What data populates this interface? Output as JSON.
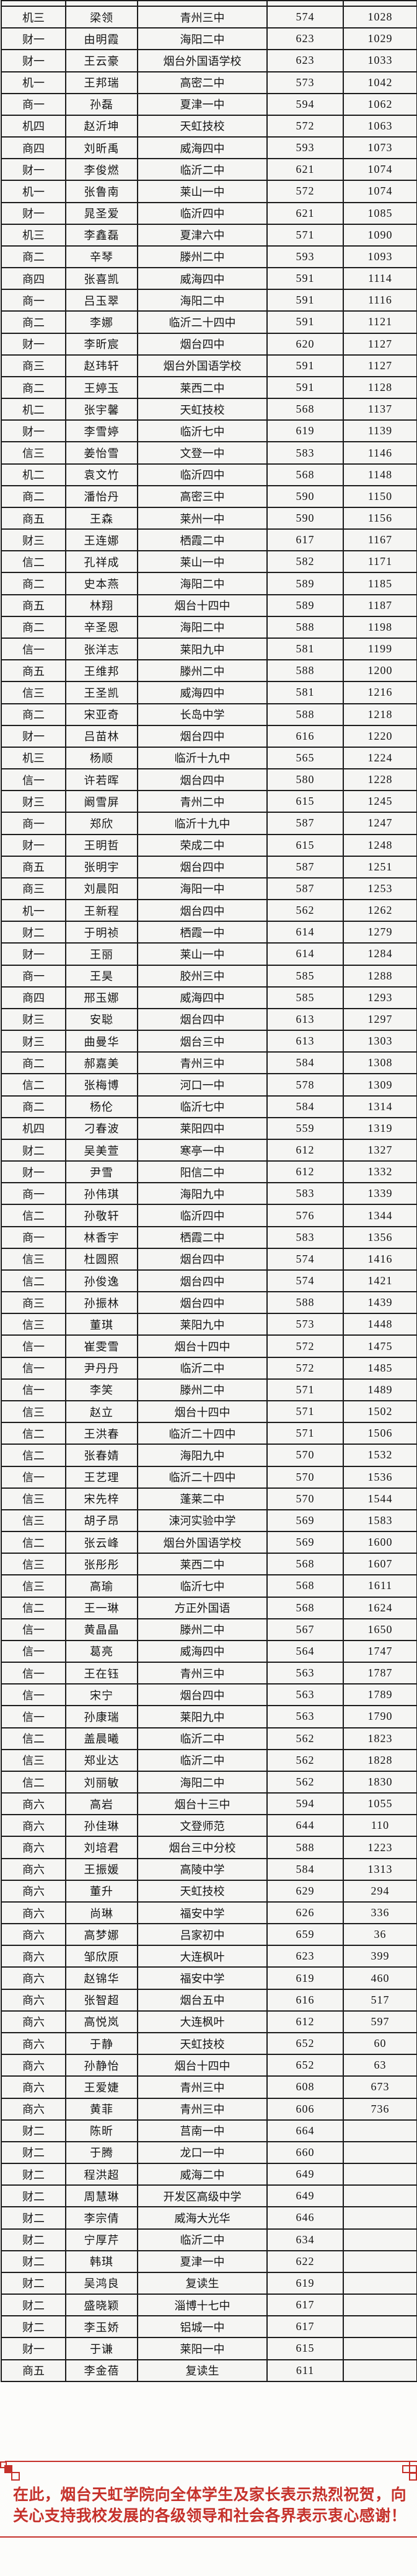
{
  "colors": {
    "accent_red": "#c5312b",
    "table_border": "#1d1d1d",
    "cell_bg": "#f5f5f3"
  },
  "table": {
    "columns": [
      "class",
      "name",
      "school",
      "score",
      "rank"
    ],
    "rows": [
      [
        "机三",
        "梁领",
        "青州三中",
        "574",
        "1028"
      ],
      [
        "财一",
        "由明霞",
        "海阳二中",
        "623",
        "1029"
      ],
      [
        "财一",
        "王云豪",
        "烟台外国语学校",
        "623",
        "1033"
      ],
      [
        "机一",
        "王邦瑞",
        "高密二中",
        "573",
        "1042"
      ],
      [
        "商一",
        "孙磊",
        "夏津一中",
        "594",
        "1062"
      ],
      [
        "机四",
        "赵沂坤",
        "天虹技校",
        "572",
        "1063"
      ],
      [
        "商四",
        "刘昕禹",
        "威海四中",
        "593",
        "1073"
      ],
      [
        "财一",
        "李俊燃",
        "临沂二中",
        "621",
        "1074"
      ],
      [
        "机一",
        "张鲁南",
        "莱山一中",
        "572",
        "1074"
      ],
      [
        "财一",
        "晁圣爱",
        "临沂四中",
        "621",
        "1085"
      ],
      [
        "机三",
        "李鑫磊",
        "夏津六中",
        "571",
        "1090"
      ],
      [
        "商二",
        "辛琴",
        "滕州二中",
        "593",
        "1093"
      ],
      [
        "商四",
        "张喜凯",
        "威海四中",
        "591",
        "1114"
      ],
      [
        "商一",
        "吕玉翠",
        "海阳二中",
        "591",
        "1116"
      ],
      [
        "商二",
        "李娜",
        "临沂二十四中",
        "591",
        "1121"
      ],
      [
        "财一",
        "李昕宸",
        "烟台四中",
        "620",
        "1127"
      ],
      [
        "商三",
        "赵玮轩",
        "烟台外国语学校",
        "591",
        "1127"
      ],
      [
        "商二",
        "王婷玉",
        "莱西二中",
        "591",
        "1128"
      ],
      [
        "机二",
        "张宇馨",
        "天虹技校",
        "568",
        "1137"
      ],
      [
        "财一",
        "李雪婷",
        "临沂七中",
        "619",
        "1139"
      ],
      [
        "信三",
        "姜怡雪",
        "文登一中",
        "583",
        "1146"
      ],
      [
        "机二",
        "袁文竹",
        "临沂四中",
        "568",
        "1148"
      ],
      [
        "商二",
        "潘怡丹",
        "高密三中",
        "590",
        "1150"
      ],
      [
        "商五",
        "王森",
        "莱州一中",
        "590",
        "1156"
      ],
      [
        "财三",
        "王连娜",
        "栖霞二中",
        "617",
        "1167"
      ],
      [
        "信二",
        "孔祥成",
        "莱山一中",
        "582",
        "1171"
      ],
      [
        "商二",
        "史本燕",
        "海阳二中",
        "589",
        "1185"
      ],
      [
        "商五",
        "林翔",
        "烟台十四中",
        "589",
        "1187"
      ],
      [
        "商二",
        "辛圣恩",
        "海阳二中",
        "588",
        "1198"
      ],
      [
        "信一",
        "张洋志",
        "莱阳九中",
        "581",
        "1199"
      ],
      [
        "商五",
        "王维邦",
        "滕州二中",
        "588",
        "1200"
      ],
      [
        "信三",
        "王圣凯",
        "威海四中",
        "581",
        "1216"
      ],
      [
        "商二",
        "宋亚奇",
        "长岛中学",
        "588",
        "1218"
      ],
      [
        "财一",
        "吕苗林",
        "烟台四中",
        "616",
        "1220"
      ],
      [
        "机三",
        "杨顺",
        "临沂十九中",
        "565",
        "1224"
      ],
      [
        "信一",
        "许若晖",
        "烟台四中",
        "580",
        "1228"
      ],
      [
        "财三",
        "阚雪屏",
        "青州二中",
        "615",
        "1245"
      ],
      [
        "商一",
        "郑欣",
        "临沂十九中",
        "587",
        "1247"
      ],
      [
        "财一",
        "王明哲",
        "荣成二中",
        "615",
        "1248"
      ],
      [
        "商五",
        "张明宇",
        "烟台四中",
        "587",
        "1251"
      ],
      [
        "商三",
        "刘晨阳",
        "海阳一中",
        "587",
        "1253"
      ],
      [
        "机一",
        "王新程",
        "烟台四中",
        "562",
        "1262"
      ],
      [
        "财二",
        "于明祯",
        "栖霞一中",
        "614",
        "1279"
      ],
      [
        "财一",
        "王丽",
        "莱山一中",
        "614",
        "1284"
      ],
      [
        "商一",
        "王昊",
        "胶州三中",
        "585",
        "1288"
      ],
      [
        "商四",
        "邢玉娜",
        "威海四中",
        "585",
        "1293"
      ],
      [
        "财三",
        "安聪",
        "烟台四中",
        "613",
        "1297"
      ],
      [
        "财三",
        "曲曼华",
        "烟台三中",
        "613",
        "1303"
      ],
      [
        "商二",
        "郝嘉美",
        "青州三中",
        "584",
        "1308"
      ],
      [
        "信二",
        "张梅博",
        "河口一中",
        "578",
        "1309"
      ],
      [
        "商二",
        "杨伦",
        "临沂七中",
        "584",
        "1314"
      ],
      [
        "机四",
        "刁春波",
        "莱阳四中",
        "559",
        "1319"
      ],
      [
        "财二",
        "吴美萱",
        "寒亭一中",
        "612",
        "1327"
      ],
      [
        "财一",
        "尹雪",
        "阳信二中",
        "612",
        "1332"
      ],
      [
        "商一",
        "孙伟琪",
        "海阳九中",
        "583",
        "1339"
      ],
      [
        "信二",
        "孙敬轩",
        "临沂四中",
        "576",
        "1344"
      ],
      [
        "商一",
        "林香宇",
        "栖霞二中",
        "583",
        "1356"
      ],
      [
        "信三",
        "杜圆照",
        "烟台四中",
        "574",
        "1416"
      ],
      [
        "信二",
        "孙俊逸",
        "烟台四中",
        "574",
        "1421"
      ],
      [
        "商三",
        "孙振林",
        "烟台四中",
        "588",
        "1439"
      ],
      [
        "信三",
        "董琪",
        "莱阳九中",
        "573",
        "1448"
      ],
      [
        "信一",
        "崔雯雪",
        "烟台十四中",
        "572",
        "1475"
      ],
      [
        "信一",
        "尹丹丹",
        "临沂二中",
        "572",
        "1485"
      ],
      [
        "信一",
        "李笑",
        "滕州二中",
        "571",
        "1489"
      ],
      [
        "信三",
        "赵立",
        "烟台十四中",
        "571",
        "1502"
      ],
      [
        "信二",
        "王洪春",
        "临沂二十四中",
        "571",
        "1506"
      ],
      [
        "信二",
        "张春婧",
        "海阳九中",
        "570",
        "1532"
      ],
      [
        "信一",
        "王艺理",
        "临沂二十四中",
        "570",
        "1536"
      ],
      [
        "信三",
        "宋先梓",
        "蓬莱二中",
        "570",
        "1544"
      ],
      [
        "信三",
        "胡子昂",
        "涑河实验中学",
        "569",
        "1583"
      ],
      [
        "信二",
        "张云峰",
        "烟台外国语学校",
        "569",
        "1600"
      ],
      [
        "信三",
        "张彤彤",
        "莱西二中",
        "568",
        "1607"
      ],
      [
        "信三",
        "高瑜",
        "临沂七中",
        "568",
        "1611"
      ],
      [
        "信二",
        "王一琳",
        "方正外国语",
        "568",
        "1624"
      ],
      [
        "信一",
        "黄晶晶",
        "滕州二中",
        "567",
        "1650"
      ],
      [
        "信一",
        "葛亮",
        "威海四中",
        "564",
        "1747"
      ],
      [
        "信一",
        "王在钰",
        "青州三中",
        "563",
        "1787"
      ],
      [
        "信一",
        "宋宁",
        "烟台四中",
        "563",
        "1789"
      ],
      [
        "信一",
        "孙康瑞",
        "莱阳九中",
        "563",
        "1790"
      ],
      [
        "信二",
        "盖晨曦",
        "临沂二中",
        "562",
        "1823"
      ],
      [
        "信三",
        "郑业达",
        "临沂二中",
        "562",
        "1828"
      ],
      [
        "信二",
        "刘丽敏",
        "海阳二中",
        "562",
        "1830"
      ],
      [
        "商六",
        "高岩",
        "烟台十三中",
        "594",
        "1055"
      ],
      [
        "商六",
        "孙佳琳",
        "文登师范",
        "644",
        "110"
      ],
      [
        "商六",
        "刘培君",
        "烟台三中分校",
        "588",
        "1223"
      ],
      [
        "商六",
        "王振媛",
        "高陵中学",
        "584",
        "1313"
      ],
      [
        "商六",
        "董升",
        "天虹技校",
        "629",
        "294"
      ],
      [
        "商六",
        "尚琳",
        "福安中学",
        "626",
        "336"
      ],
      [
        "商六",
        "高梦娜",
        "吕家初中",
        "659",
        "36"
      ],
      [
        "商六",
        "邹欣原",
        "大连枫叶",
        "623",
        "399"
      ],
      [
        "商六",
        "赵锦华",
        "福安中学",
        "619",
        "460"
      ],
      [
        "商六",
        "张智超",
        "烟台五中",
        "616",
        "517"
      ],
      [
        "商六",
        "高悦岚",
        "大连枫叶",
        "612",
        "597"
      ],
      [
        "商六",
        "于静",
        "天虹技校",
        "652",
        "60"
      ],
      [
        "商六",
        "孙静怡",
        "烟台十四中",
        "652",
        "63"
      ],
      [
        "商六",
        "王爱婕",
        "青州三中",
        "608",
        "673"
      ],
      [
        "商六",
        "黄菲",
        "青州三中",
        "606",
        "736"
      ],
      [
        "财二",
        "陈昕",
        "莒南一中",
        "664",
        ""
      ],
      [
        "财二",
        "于腾",
        "龙口一中",
        "660",
        ""
      ],
      [
        "财二",
        "程洪超",
        "威海二中",
        "649",
        ""
      ],
      [
        "财二",
        "周慧琳",
        "开发区高级中学",
        "649",
        ""
      ],
      [
        "财二",
        "李宗倩",
        "威海大光华",
        "646",
        ""
      ],
      [
        "财二",
        "宁厚芹",
        "临沂二中",
        "634",
        ""
      ],
      [
        "财二",
        "韩琪",
        "夏津一中",
        "622",
        ""
      ],
      [
        "财二",
        "吴鸿良",
        "复读生",
        "619",
        ""
      ],
      [
        "财二",
        "盛晓颖",
        "淄博十七中",
        "617",
        ""
      ],
      [
        "财二",
        "李玉娇",
        "铝城一中",
        "617",
        ""
      ],
      [
        "财一",
        "于谦",
        "莱阳一中",
        "615",
        ""
      ],
      [
        "商五",
        "李金蓓",
        "复读生",
        "611",
        ""
      ]
    ]
  },
  "footer": {
    "line1": "在此，烟台天虹学院向全体学生及家长表示热烈祝贺，向",
    "line2": "关心支持我校发展的各级领导和社会各界表示衷心感谢！"
  }
}
